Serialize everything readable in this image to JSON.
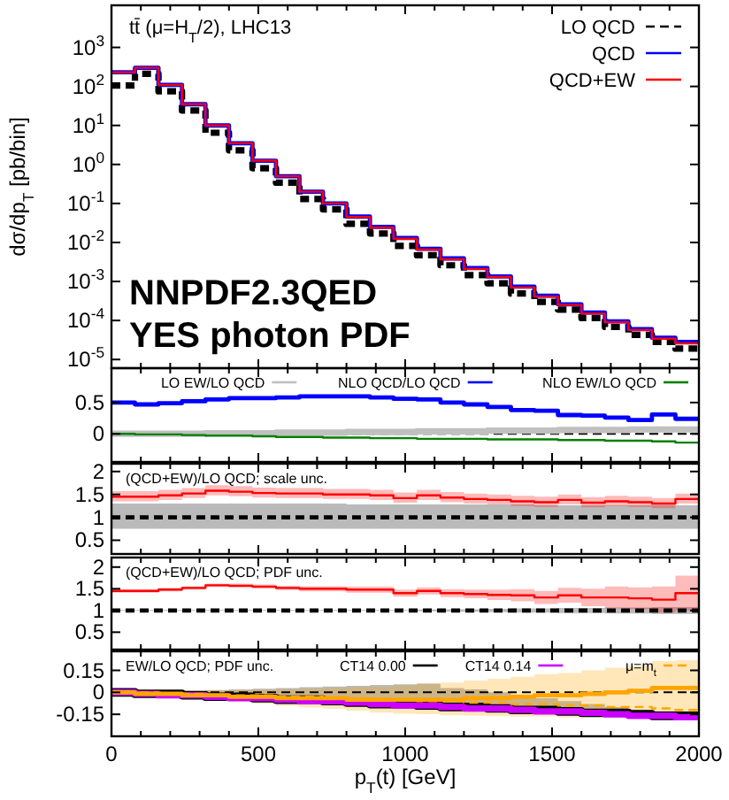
{
  "chart_data": [
    {
      "type": "step",
      "ylabel": "dσ/dp$_{T}$ [pb/bin]",
      "annotations": [
        "tt̄ (μ=H$_{T}$/2), LHC13",
        "NNPDF2.3QED",
        "YES photon PDF"
      ],
      "log": true,
      "legend": "top right",
      "tick_labels": "y",
      "xlim": [
        0,
        2000
      ],
      "ylim": [
        6e-06,
        12000
      ],
      "xticks": [
        0,
        {
          "value": 100,
          "label": null
        },
        {
          "value": 200,
          "label": null
        },
        {
          "value": 300,
          "label": null
        },
        {
          "value": 400,
          "label": null
        },
        500,
        {
          "value": 600,
          "label": null
        },
        {
          "value": 700,
          "label": null
        },
        {
          "value": 800,
          "label": null
        },
        {
          "value": 900,
          "label": null
        },
        1000,
        {
          "value": 1100,
          "label": null
        },
        {
          "value": 1200,
          "label": null
        },
        {
          "value": 1300,
          "label": null
        },
        {
          "value": 1400,
          "label": null
        },
        1500,
        {
          "value": 1600,
          "label": null
        },
        {
          "value": 1700,
          "label": null
        },
        {
          "value": 1800,
          "label": null
        },
        {
          "value": 1900,
          "label": null
        },
        2000
      ],
      "yticks": [
        {
          "value": 1e-05,
          "label": "10$^{-5}$"
        },
        {
          "value": 0.0001,
          "label": "10$^{-4}$"
        },
        {
          "value": 0.001,
          "label": "10$^{-3}$"
        },
        {
          "value": 0.01,
          "label": "10$^{-2}$"
        },
        {
          "value": 0.1,
          "label": "10$^{-1}$"
        },
        {
          "value": 1,
          "label": "10$^{0}$"
        },
        {
          "value": 10,
          "label": "10$^{1}$"
        },
        {
          "value": 100,
          "label": "10$^{2}$"
        },
        {
          "value": 1000,
          "label": "10$^{3}$"
        }
      ],
      "x": [
        0,
        80,
        160,
        240,
        320,
        400,
        480,
        560,
        640,
        720,
        800,
        880,
        960,
        1040,
        1120,
        1200,
        1280,
        1360,
        1440,
        1520,
        1600,
        1680,
        1760,
        1840,
        1920,
        2000
      ],
      "series": [
        {
          "name": "LO QCD",
          "color": "#000000",
          "line_style": "dashed",
          "values": [
            105,
            210,
            75,
            24,
            6.5,
            2.3,
            0.8,
            0.34,
            0.13,
            0.07,
            0.03,
            0.017,
            0.0082,
            0.0047,
            0.0026,
            0.00145,
            0.0009,
            0.00049,
            0.0003,
            0.00019,
            0.000115,
            6.8e-05,
            4.3e-05,
            2.8e-05,
            1.9e-05,
            1.9e-05
          ]
        },
        {
          "name": "QCD",
          "color": "#0000ff",
          "values": [
            230,
            300,
            110,
            35,
            10,
            3.5,
            1.25,
            0.5,
            0.2,
            0.1,
            0.046,
            0.025,
            0.013,
            0.0069,
            0.0039,
            0.0022,
            0.00135,
            0.00074,
            0.00043,
            0.00026,
            0.00016,
            9.5e-05,
            6e-05,
            3.6e-05,
            2.8e-05,
            2.8e-05
          ]
        },
        {
          "name": "QCD+EW",
          "color": "#ff0000",
          "values": [
            230,
            300,
            110,
            35,
            10,
            3.5,
            1.25,
            0.5,
            0.2,
            0.1,
            0.045,
            0.024,
            0.0125,
            0.0066,
            0.0037,
            0.0021,
            0.0013,
            0.0007,
            0.00041,
            0.00025,
            0.00015,
            9e-05,
            5.7e-05,
            3.4e-05,
            2.6e-05,
            2.6e-05
          ]
        }
      ]
    },
    {
      "type": "step",
      "legend": "top",
      "tick_labels": "y",
      "xlim": [
        0,
        2000
      ],
      "ylim": [
        -0.45,
        1.05
      ],
      "xticks": [
        0,
        {
          "value": 100,
          "label": null
        },
        {
          "value": 200,
          "label": null
        },
        {
          "value": 300,
          "label": null
        },
        {
          "value": 400,
          "label": null
        },
        500,
        {
          "value": 600,
          "label": null
        },
        {
          "value": 700,
          "label": null
        },
        {
          "value": 800,
          "label": null
        },
        {
          "value": 900,
          "label": null
        },
        1000,
        {
          "value": 1100,
          "label": null
        },
        {
          "value": 1200,
          "label": null
        },
        {
          "value": 1300,
          "label": null
        },
        {
          "value": 1400,
          "label": null
        },
        1500,
        {
          "value": 1600,
          "label": null
        },
        {
          "value": 1700,
          "label": null
        },
        {
          "value": 1800,
          "label": null
        },
        {
          "value": 1900,
          "label": null
        },
        2000
      ],
      "yticks": [
        0,
        0.5
      ],
      "ref_lines": [
        {
          "axis": "y",
          "value": 0,
          "color": "#000000",
          "line_style": "dashed"
        }
      ],
      "x": [
        0,
        80,
        160,
        240,
        320,
        400,
        480,
        560,
        640,
        720,
        800,
        880,
        960,
        1040,
        1120,
        1200,
        1280,
        1360,
        1440,
        1520,
        1600,
        1680,
        1760,
        1840,
        1920,
        2000
      ],
      "series": [
        {
          "name": "LO EW/LO QCD",
          "color": "#c0c0c0",
          "values": [
            0,
            0,
            0,
            0,
            0.01,
            0.01,
            0.01,
            0.02,
            0.02,
            0.02,
            0.03,
            0.03,
            0.03,
            0.04,
            0.04,
            0.04,
            0.05,
            0.05,
            0.05,
            0.06,
            0.06,
            0.06,
            0.07,
            0.07,
            0.07,
            0.07
          ]
        },
        {
          "name": "NLO QCD/LO QCD",
          "color": "#0000ff",
          "values": [
            0.5,
            0.47,
            0.49,
            0.52,
            0.55,
            0.57,
            0.57,
            0.58,
            0.6,
            0.6,
            0.6,
            0.58,
            0.56,
            0.55,
            0.5,
            0.47,
            0.43,
            0.38,
            0.37,
            0.3,
            0.29,
            0.26,
            0.22,
            0.31,
            0.24,
            0.24
          ]
        },
        {
          "name": "NLO EW/LO QCD",
          "color": "#008000",
          "values": [
            0,
            -0.01,
            -0.01,
            -0.02,
            -0.03,
            -0.03,
            -0.04,
            -0.05,
            -0.05,
            -0.06,
            -0.06,
            -0.07,
            -0.07,
            -0.08,
            -0.08,
            -0.08,
            -0.09,
            -0.09,
            -0.09,
            -0.1,
            -0.1,
            -0.11,
            -0.11,
            -0.12,
            -0.14,
            -0.14
          ]
        }
      ]
    },
    {
      "type": "step",
      "annotations": [
        "(QCD+EW)/LO QCD; scale unc."
      ],
      "tick_labels": "y",
      "xlim": [
        0,
        2000
      ],
      "ylim": [
        0.2,
        2.17
      ],
      "xticks": [
        0,
        {
          "value": 100,
          "label": null
        },
        {
          "value": 200,
          "label": null
        },
        {
          "value": 300,
          "label": null
        },
        {
          "value": 400,
          "label": null
        },
        500,
        {
          "value": 600,
          "label": null
        },
        {
          "value": 700,
          "label": null
        },
        {
          "value": 800,
          "label": null
        },
        {
          "value": 900,
          "label": null
        },
        1000,
        {
          "value": 1100,
          "label": null
        },
        {
          "value": 1200,
          "label": null
        },
        {
          "value": 1300,
          "label": null
        },
        {
          "value": 1400,
          "label": null
        },
        1500,
        {
          "value": 1600,
          "label": null
        },
        {
          "value": 1700,
          "label": null
        },
        {
          "value": 1800,
          "label": null
        },
        {
          "value": 1900,
          "label": null
        },
        2000
      ],
      "yticks": [
        0.5,
        1,
        1.5,
        2
      ],
      "x": [
        0,
        80,
        160,
        240,
        320,
        400,
        480,
        560,
        640,
        720,
        800,
        880,
        960,
        1040,
        1120,
        1200,
        1280,
        1360,
        1440,
        1520,
        1600,
        1680,
        1760,
        1840,
        1920,
        2000
      ],
      "series": [
        {
          "color": "#000000",
          "line_style": "dashed",
          "values": [
            1,
            1,
            1,
            1,
            1,
            1,
            1,
            1,
            1,
            1,
            1,
            1,
            1,
            1,
            1,
            1,
            1,
            1,
            1,
            1,
            1,
            1,
            1,
            1,
            1,
            1
          ],
          "upper": [
            1.3,
            1.3,
            1.3,
            1.3,
            1.3,
            1.3,
            1.3,
            1.3,
            1.3,
            1.3,
            1.28,
            1.28,
            1.28,
            1.28,
            1.28,
            1.28,
            1.28,
            1.28,
            1.26,
            1.26,
            1.26,
            1.26,
            1.26,
            1.26,
            1.26,
            1.26
          ],
          "lower": [
            0.75,
            0.75,
            0.75,
            0.75,
            0.75,
            0.75,
            0.75,
            0.75,
            0.75,
            0.75,
            0.75,
            0.75,
            0.75,
            0.75,
            0.75,
            0.75,
            0.75,
            0.75,
            0.75,
            0.75,
            0.75,
            0.75,
            0.75,
            0.75,
            0.75,
            0.75
          ]
        },
        {
          "color": "#ff0000",
          "values": [
            1.45,
            1.45,
            1.48,
            1.52,
            1.58,
            1.56,
            1.53,
            1.52,
            1.52,
            1.5,
            1.5,
            1.48,
            1.42,
            1.48,
            1.43,
            1.4,
            1.38,
            1.35,
            1.33,
            1.38,
            1.32,
            1.35,
            1.33,
            1.3,
            1.4,
            1.4
          ],
          "upper": [
            1.57,
            1.57,
            1.6,
            1.64,
            1.7,
            1.68,
            1.65,
            1.64,
            1.64,
            1.62,
            1.62,
            1.6,
            1.54,
            1.6,
            1.55,
            1.52,
            1.5,
            1.47,
            1.45,
            1.5,
            1.44,
            1.47,
            1.45,
            1.42,
            1.52,
            1.52
          ],
          "lower": [
            1.35,
            1.35,
            1.38,
            1.42,
            1.48,
            1.46,
            1.43,
            1.42,
            1.42,
            1.4,
            1.4,
            1.38,
            1.32,
            1.38,
            1.33,
            1.3,
            1.28,
            1.25,
            1.23,
            1.28,
            1.22,
            1.25,
            1.23,
            1.2,
            1.3,
            1.3
          ]
        }
      ]
    },
    {
      "type": "step",
      "annotations": [
        "(QCD+EW)/LO QCD; PDF unc."
      ],
      "tick_labels": "y",
      "xlim": [
        0,
        2000
      ],
      "ylim": [
        0.1,
        2.22
      ],
      "xticks": [
        0,
        {
          "value": 100,
          "label": null
        },
        {
          "value": 200,
          "label": null
        },
        {
          "value": 300,
          "label": null
        },
        {
          "value": 400,
          "label": null
        },
        500,
        {
          "value": 600,
          "label": null
        },
        {
          "value": 700,
          "label": null
        },
        {
          "value": 800,
          "label": null
        },
        {
          "value": 900,
          "label": null
        },
        1000,
        {
          "value": 1100,
          "label": null
        },
        {
          "value": 1200,
          "label": null
        },
        {
          "value": 1300,
          "label": null
        },
        {
          "value": 1400,
          "label": null
        },
        1500,
        {
          "value": 1600,
          "label": null
        },
        {
          "value": 1700,
          "label": null
        },
        {
          "value": 1800,
          "label": null
        },
        {
          "value": 1900,
          "label": null
        },
        2000
      ],
      "yticks": [
        0.5,
        1,
        1.5,
        2
      ],
      "x": [
        0,
        80,
        160,
        240,
        320,
        400,
        480,
        560,
        640,
        720,
        800,
        880,
        960,
        1040,
        1120,
        1200,
        1280,
        1360,
        1440,
        1520,
        1600,
        1680,
        1760,
        1840,
        1920,
        2000
      ],
      "series": [
        {
          "color": "#000000",
          "line_style": "dashed",
          "values": [
            1,
            1,
            1,
            1,
            1,
            1,
            1,
            1,
            1,
            1,
            1,
            1,
            1,
            1,
            1,
            1,
            1,
            1,
            1,
            1,
            1,
            1,
            1,
            1,
            1,
            1
          ],
          "upper": [
            1.01,
            1.01,
            1.01,
            1.01,
            1.01,
            1.01,
            1.01,
            1.01,
            1.01,
            1.01,
            1.01,
            1.01,
            1.01,
            1.02,
            1.03,
            1.03,
            1.04,
            1.05,
            1.05,
            1.06,
            1.06,
            1.07,
            1.07,
            1.08,
            1.08,
            1.08
          ],
          "lower": [
            0.99,
            0.99,
            0.99,
            0.99,
            0.99,
            0.99,
            0.99,
            0.99,
            0.99,
            0.99,
            0.99,
            0.99,
            0.99,
            0.98,
            0.97,
            0.97,
            0.96,
            0.95,
            0.95,
            0.94,
            0.94,
            0.93,
            0.93,
            0.92,
            0.92,
            0.92
          ]
        },
        {
          "color": "#ff0000",
          "values": [
            1.45,
            1.45,
            1.48,
            1.52,
            1.58,
            1.57,
            1.55,
            1.52,
            1.5,
            1.5,
            1.48,
            1.48,
            1.4,
            1.45,
            1.4,
            1.38,
            1.36,
            1.35,
            1.3,
            1.35,
            1.3,
            1.3,
            1.28,
            1.25,
            1.4,
            1.4
          ],
          "upper": [
            1.49,
            1.49,
            1.52,
            1.56,
            1.62,
            1.62,
            1.6,
            1.57,
            1.56,
            1.56,
            1.55,
            1.55,
            1.48,
            1.53,
            1.49,
            1.48,
            1.48,
            1.49,
            1.45,
            1.52,
            1.5,
            1.55,
            1.53,
            1.55,
            1.8,
            1.8
          ],
          "lower": [
            1.41,
            1.41,
            1.44,
            1.48,
            1.54,
            1.52,
            1.5,
            1.47,
            1.44,
            1.44,
            1.41,
            1.41,
            1.32,
            1.37,
            1.31,
            1.28,
            1.24,
            1.21,
            1.15,
            1.18,
            1.1,
            1.05,
            1.03,
            0.95,
            1.0,
            1.0
          ]
        }
      ]
    },
    {
      "type": "step",
      "xlabel": "p$_{T}$(t) [GeV]",
      "annotations": [
        "EW/LO QCD; PDF unc."
      ],
      "legend": "top right",
      "xlim": [
        0,
        2000
      ],
      "ylim": [
        -0.3,
        0.28
      ],
      "xticks": [
        0,
        {
          "value": 100,
          "label": null
        },
        {
          "value": 200,
          "label": null
        },
        {
          "value": 300,
          "label": null
        },
        {
          "value": 400,
          "label": null
        },
        500,
        {
          "value": 600,
          "label": null
        },
        {
          "value": 700,
          "label": null
        },
        {
          "value": 800,
          "label": null
        },
        {
          "value": 900,
          "label": null
        },
        1000,
        {
          "value": 1100,
          "label": null
        },
        {
          "value": 1200,
          "label": null
        },
        {
          "value": 1300,
          "label": null
        },
        {
          "value": 1400,
          "label": null
        },
        1500,
        {
          "value": 1600,
          "label": null
        },
        {
          "value": 1700,
          "label": null
        },
        {
          "value": 1800,
          "label": null
        },
        {
          "value": 1900,
          "label": null
        },
        2000
      ],
      "yticks": [
        -0.15,
        0,
        0.15
      ],
      "ref_lines": [
        {
          "axis": "y",
          "value": 0,
          "color": "#000000",
          "line_style": "dashed"
        }
      ],
      "x": [
        0,
        80,
        160,
        240,
        320,
        400,
        480,
        560,
        640,
        720,
        800,
        880,
        960,
        1040,
        1120,
        1200,
        1280,
        1360,
        1440,
        1520,
        1600,
        1680,
        1760,
        1840,
        1920,
        2000
      ],
      "series": [
        {
          "name": "CT14 0.00",
          "color": "#000000",
          "values": [
            0,
            -0.01,
            -0.01,
            -0.02,
            -0.03,
            -0.03,
            -0.04,
            -0.05,
            -0.05,
            -0.06,
            -0.07,
            -0.08,
            -0.08,
            -0.09,
            -0.1,
            -0.1,
            -0.11,
            -0.12,
            -0.12,
            -0.13,
            -0.14,
            -0.14,
            -0.15,
            -0.16,
            -0.16,
            -0.16
          ],
          "upper": [
            0,
            0,
            0.005,
            0.01,
            0.015,
            0.02,
            0.025,
            0.03,
            0.035,
            0.04,
            0.045,
            0.05,
            0.055,
            0.06,
            0.03,
            0.02,
            0,
            -0.02,
            -0.04,
            -0.06,
            -0.08,
            -0.1,
            -0.12,
            -0.13,
            -0.14,
            -0.14
          ],
          "lower": [
            0,
            -0.019,
            -0.026,
            -0.032,
            -0.039,
            -0.046,
            -0.053,
            -0.06,
            -0.066,
            -0.073,
            -0.08,
            -0.087,
            -0.094,
            -0.1,
            -0.107,
            -0.114,
            -0.121,
            -0.128,
            -0.134,
            -0.141,
            -0.148,
            -0.155,
            -0.162,
            -0.168,
            -0.175,
            -0.175
          ]
        },
        {
          "name": "CT14 0.14",
          "color": "#cc00ff",
          "values": [
            0,
            -0.01,
            -0.02,
            -0.02,
            -0.03,
            -0.04,
            -0.04,
            -0.05,
            -0.06,
            -0.06,
            -0.07,
            -0.08,
            -0.09,
            -0.09,
            -0.1,
            -0.11,
            -0.11,
            -0.12,
            -0.13,
            -0.13,
            -0.14,
            -0.15,
            -0.16,
            -0.16,
            -0.17,
            -0.17
          ]
        },
        {
          "color": "#ffa500",
          "values": [
            0,
            -0.01,
            -0.01,
            -0.02,
            -0.02,
            -0.03,
            -0.03,
            -0.04,
            -0.04,
            -0.04,
            -0.05,
            -0.05,
            -0.05,
            -0.05,
            -0.05,
            -0.04,
            -0.04,
            -0.03,
            -0.02,
            -0.02,
            -0.01,
            0,
            0.01,
            0.03,
            0.03,
            0.03
          ],
          "upper": [
            0,
            0.003,
            0.006,
            0.009,
            0.012,
            0.015,
            0.018,
            0.021,
            0.024,
            0.032,
            0.035,
            0.038,
            0.046,
            0.059,
            0.067,
            0.08,
            0.093,
            0.106,
            0.124,
            0.132,
            0.15,
            0.168,
            0.181,
            0.214,
            0.22,
            0.22
          ],
          "lower": [
            0,
            -0.013,
            -0.026,
            -0.039,
            -0.052,
            -0.065,
            -0.078,
            -0.091,
            -0.104,
            -0.112,
            -0.125,
            -0.138,
            -0.146,
            -0.149,
            -0.157,
            -0.16,
            -0.163,
            -0.166,
            -0.164,
            -0.172,
            -0.17,
            -0.168,
            -0.171,
            -0.154,
            -0.16,
            -0.16
          ]
        },
        {
          "name": "μ=m$_{t}$",
          "color": "#ffa500",
          "line_style": "dashed",
          "values": [
            0,
            0,
            -0.01,
            -0.01,
            -0.02,
            -0.02,
            -0.02,
            -0.03,
            -0.03,
            -0.04,
            -0.04,
            -0.05,
            -0.05,
            -0.06,
            -0.06,
            -0.07,
            -0.07,
            -0.08,
            -0.08,
            -0.09,
            -0.09,
            -0.1,
            -0.1,
            -0.11,
            -0.12,
            -0.12
          ]
        }
      ]
    }
  ]
}
